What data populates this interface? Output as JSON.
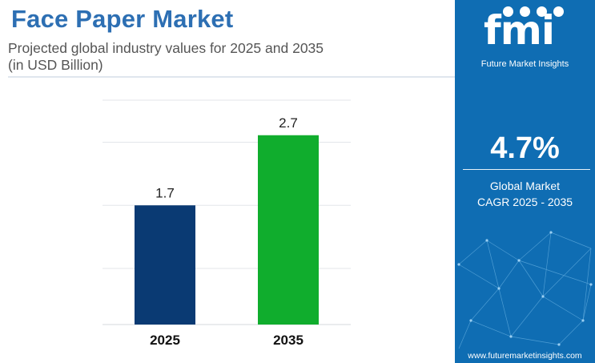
{
  "header": {
    "title": "Face Paper Market",
    "subtitle_line1": "Projected global industry values for 2025 and 2035",
    "subtitle_line2": "(in USD Billion)"
  },
  "sidebar": {
    "logo_text": "fmi",
    "logo_caption": "Future Market Insights",
    "cagr_value": "4.7%",
    "cagr_label_line1": "Global Market",
    "cagr_label_line2": "CAGR 2025 - 2035",
    "website": "www.futuremarketinsights.com"
  },
  "colors": {
    "title": "#2d6fb3",
    "sidebar_bg": "#0f6db3",
    "bar_2025": "#0a3a73",
    "bar_2035": "#10ad2d"
  },
  "chart_data": {
    "type": "bar",
    "categories": [
      "2025",
      "2035"
    ],
    "values": [
      1.7,
      2.7
    ],
    "data_labels": [
      "1.7",
      "2.7"
    ],
    "title": "Face Paper Market",
    "xlabel": "",
    "ylabel": "",
    "ylim": [
      0,
      3.2
    ],
    "grid": true,
    "legend": "none"
  }
}
